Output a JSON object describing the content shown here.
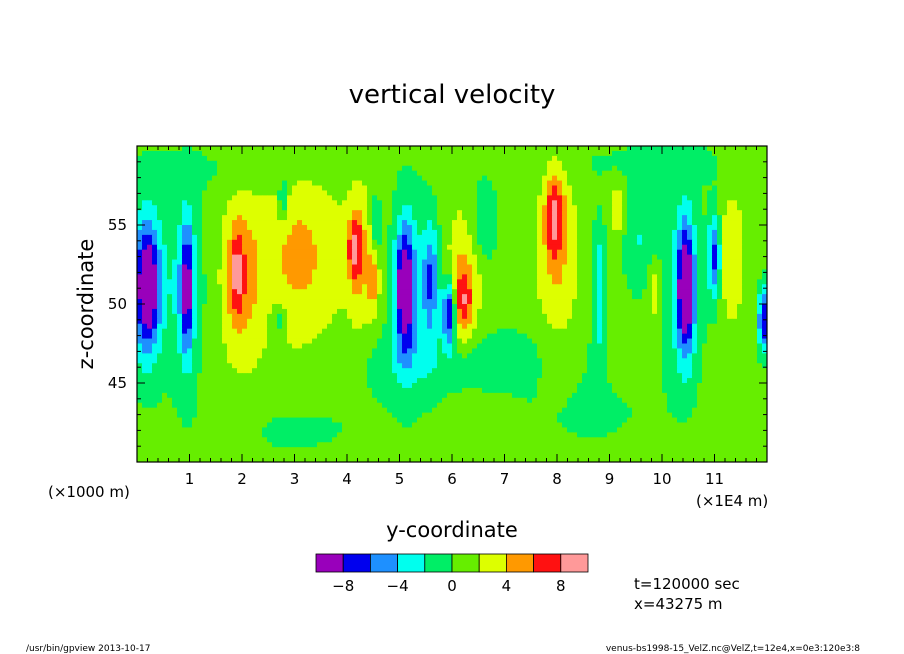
{
  "chart_data": {
    "type": "heatmap",
    "title": "vertical velocity",
    "xlabel": "y-coordinate",
    "ylabel": "z-coordinate",
    "x_unit_note": "(×1E4 m)",
    "y_unit_note": "(×1000 m)",
    "xlim": [
      0,
      120000
    ],
    "ylim": [
      40,
      60
    ],
    "xticks": [
      {
        "value": 10000,
        "label": "1"
      },
      {
        "value": 20000,
        "label": "2"
      },
      {
        "value": 30000,
        "label": "3"
      },
      {
        "value": 40000,
        "label": "4"
      },
      {
        "value": 50000,
        "label": "5"
      },
      {
        "value": 60000,
        "label": "6"
      },
      {
        "value": 70000,
        "label": "7"
      },
      {
        "value": 80000,
        "label": "8"
      },
      {
        "value": 90000,
        "label": "9"
      },
      {
        "value": 100000,
        "label": "10"
      },
      {
        "value": 110000,
        "label": "11"
      }
    ],
    "yticks": [
      {
        "value": 45,
        "label": "45"
      },
      {
        "value": 50,
        "label": "50"
      },
      {
        "value": 55,
        "label": "55"
      }
    ],
    "colorbar": {
      "levels": [
        -10,
        -8,
        -6,
        -4,
        -2,
        0,
        2,
        4,
        6,
        8,
        10
      ],
      "colors": [
        "#9900bb",
        "#0000ee",
        "#1e90ff",
        "#00ffee",
        "#00ee66",
        "#66ee00",
        "#ddff00",
        "#ff9900",
        "#ff1111",
        "#ff9999"
      ],
      "tick_labels": [
        {
          "value": -8,
          "label": "−8"
        },
        {
          "value": -4,
          "label": "−4"
        },
        {
          "value": 0,
          "label": "0"
        },
        {
          "value": 4,
          "label": "4"
        },
        {
          "value": 8,
          "label": "8"
        }
      ]
    },
    "background_value": 1,
    "features": [
      {
        "y": 2000,
        "z": 51,
        "sy": 1600,
        "sz": 2.8,
        "amp": -10
      },
      {
        "y": 1500,
        "z": 51.5,
        "sy": 3000,
        "sz": 4.5,
        "amp": -3
      },
      {
        "y": 9500,
        "z": 51,
        "sy": 900,
        "sz": 3.0,
        "amp": -8
      },
      {
        "y": 9000,
        "z": 51,
        "sy": 2800,
        "sz": 4.5,
        "amp": -3
      },
      {
        "y": 20000,
        "z": 51.5,
        "sy": 2800,
        "sz": 4.0,
        "amp": 3.5
      },
      {
        "y": 19000,
        "z": 52,
        "sy": 1000,
        "sz": 1.8,
        "amp": 5
      },
      {
        "y": 31000,
        "z": 53,
        "sy": 5500,
        "sz": 4.0,
        "amp": 3.5
      },
      {
        "y": 41500,
        "z": 53.5,
        "sy": 1000,
        "sz": 1.4,
        "amp": 6
      },
      {
        "y": 27000,
        "z": 49,
        "sy": 1200,
        "sz": 0.8,
        "amp": -3
      },
      {
        "y": 27800,
        "z": 56.5,
        "sy": 700,
        "sz": 1.0,
        "amp": -4
      },
      {
        "y": 42500,
        "z": 53,
        "sy": 1600,
        "sz": 4.0,
        "amp": 2.5
      },
      {
        "y": 45500,
        "z": 55,
        "sy": 600,
        "sz": 1.2,
        "amp": -4
      },
      {
        "y": 45000,
        "z": 51.5,
        "sy": 800,
        "sz": 1.5,
        "amp": 4
      },
      {
        "y": 51000,
        "z": 51,
        "sy": 1300,
        "sz": 2.8,
        "amp": -10
      },
      {
        "y": 52500,
        "z": 51,
        "sy": 3000,
        "sz": 4.5,
        "amp": -3
      },
      {
        "y": 56000,
        "z": 51.5,
        "sy": 1100,
        "sz": 2.5,
        "amp": -6
      },
      {
        "y": 59500,
        "z": 49.5,
        "sy": 900,
        "sz": 1.4,
        "amp": -10
      },
      {
        "y": 62000,
        "z": 50,
        "sy": 1300,
        "sz": 1.6,
        "amp": 5
      },
      {
        "y": 62500,
        "z": 52,
        "sy": 2500,
        "sz": 3.0,
        "amp": 3
      },
      {
        "y": 66000,
        "z": 55,
        "sy": 2000,
        "sz": 2.0,
        "amp": -3
      },
      {
        "y": 79500,
        "z": 55.5,
        "sy": 1200,
        "sz": 1.8,
        "amp": 6
      },
      {
        "y": 80000,
        "z": 53,
        "sy": 2600,
        "sz": 4.5,
        "amp": 3
      },
      {
        "y": 88000,
        "z": 51,
        "sy": 900,
        "sz": 3.0,
        "amp": -4.5
      },
      {
        "y": 91500,
        "z": 56,
        "sy": 900,
        "sz": 1.0,
        "amp": 4
      },
      {
        "y": 96000,
        "z": 54,
        "sy": 2500,
        "sz": 2.5,
        "amp": -3
      },
      {
        "y": 98500,
        "z": 51,
        "sy": 900,
        "sz": 1.5,
        "amp": 3.5
      },
      {
        "y": 104500,
        "z": 51,
        "sy": 1200,
        "sz": 3.0,
        "amp": -10
      },
      {
        "y": 104000,
        "z": 51,
        "sy": 3000,
        "sz": 4.5,
        "amp": -3
      },
      {
        "y": 110000,
        "z": 53,
        "sy": 900,
        "sz": 2.0,
        "amp": -8
      },
      {
        "y": 113000,
        "z": 53,
        "sy": 2000,
        "sz": 3.0,
        "amp": 2.5
      },
      {
        "y": 119500,
        "z": 49,
        "sy": 900,
        "sz": 1.5,
        "amp": -9
      },
      {
        "y": 52000,
        "z": 46,
        "sy": 12000,
        "sz": 1.5,
        "amp": -1.4
      },
      {
        "y": 70000,
        "z": 47,
        "sy": 15000,
        "sz": 1.5,
        "amp": -1.3
      },
      {
        "y": 85000,
        "z": 43,
        "sy": 12000,
        "sz": 2.0,
        "amp": -1.3
      },
      {
        "y": 30000,
        "z": 42,
        "sy": 15000,
        "sz": 2.0,
        "amp": -1.2
      },
      {
        "y": 100000,
        "z": 59,
        "sy": 20000,
        "sz": 1.2,
        "amp": -1.2
      },
      {
        "y": 20000,
        "z": 58.5,
        "sy": 15000,
        "sz": 1.2,
        "amp": -1.2
      }
    ]
  },
  "annotations": {
    "time": "t=120000 sec",
    "position": "x=43275 m",
    "footer_left": "/usr/bin/gpview  2013-10-17",
    "footer_right": "venus-bs1998-15_VelZ.nc@VelZ,t=12e4,x=0e3:120e3:8"
  }
}
